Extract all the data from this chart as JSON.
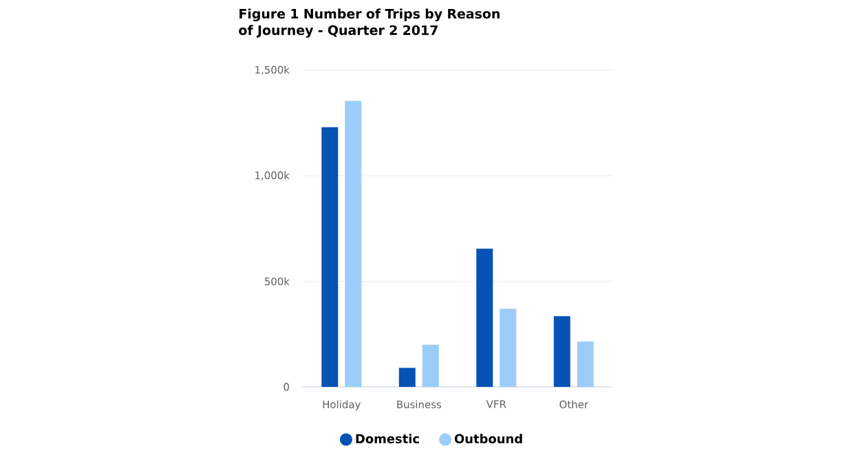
{
  "chart_data": {
    "type": "bar",
    "title": "Figure 1 Number of Trips by Reason of Journey - Quarter 2 2017",
    "categories": [
      "Holiday",
      "Business",
      "VFR",
      "Other"
    ],
    "series": [
      {
        "name": "Domestic",
        "color": "#0652b5",
        "values": [
          1230,
          90,
          655,
          335
        ]
      },
      {
        "name": "Outbound",
        "color": "#9ccdfa",
        "values": [
          1355,
          200,
          370,
          215
        ]
      }
    ],
    "ylim": [
      0,
      1500
    ],
    "yticks": [
      {
        "value": 0,
        "label": "0"
      },
      {
        "value": 500,
        "label": "500k"
      },
      {
        "value": 1000,
        "label": "1,000k"
      },
      {
        "value": 1500,
        "label": "1,500k"
      }
    ],
    "grid": "y",
    "legend": "bottom"
  }
}
